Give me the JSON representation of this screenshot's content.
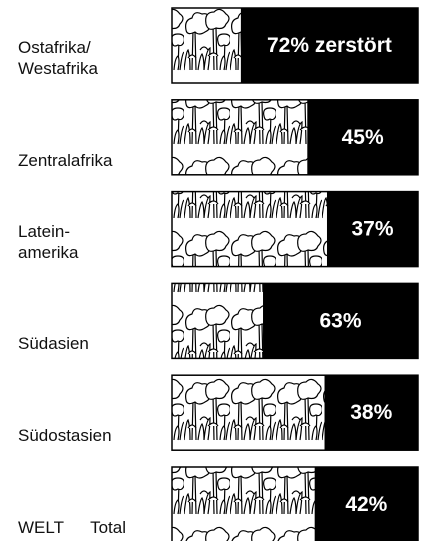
{
  "chart_data": {
    "type": "bar",
    "categories": [
      "Ostafrika/\nWestafrika",
      "Zentralafrika",
      "Latein-\namerika",
      "Südasien",
      "Südostasien",
      "WELT Total"
    ],
    "values": [
      72,
      45,
      37,
      63,
      38,
      42
    ],
    "value_labels": [
      "72% zerstört",
      "45%",
      "37%",
      "63%",
      "38%",
      "42%"
    ],
    "xlim": [
      0,
      100
    ],
    "color": "#000000"
  }
}
